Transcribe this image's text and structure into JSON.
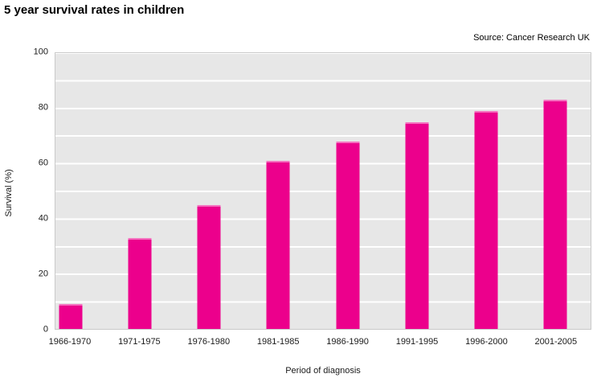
{
  "header": {
    "title": "5 year survival rates in children",
    "source": "Source: Cancer Research UK"
  },
  "chart_data": {
    "type": "bar",
    "title": "5 year survival rates in children",
    "source": "Source: Cancer Research UK",
    "categories": [
      "1966-1970",
      "1971-1975",
      "1976-1980",
      "1981-1985",
      "1986-1990",
      "1991-1995",
      "1996-2000",
      "2001-2005"
    ],
    "values": [
      9,
      33,
      45,
      61,
      68,
      75,
      79,
      83
    ],
    "xlabel": "Period of diagnosis",
    "ylabel": "Survival (%)",
    "ylim": [
      0,
      100
    ],
    "y_tick_labels": [
      0,
      20,
      40,
      60,
      80,
      100
    ],
    "gridline_interval": 10,
    "grid": "horizontal white lines on gray band background",
    "legend_position": "none",
    "bar_color": "#ec008c",
    "plot_background_color": "#e7e7e7",
    "gridline_color": "#ffffff",
    "text_color": "#000000"
  }
}
